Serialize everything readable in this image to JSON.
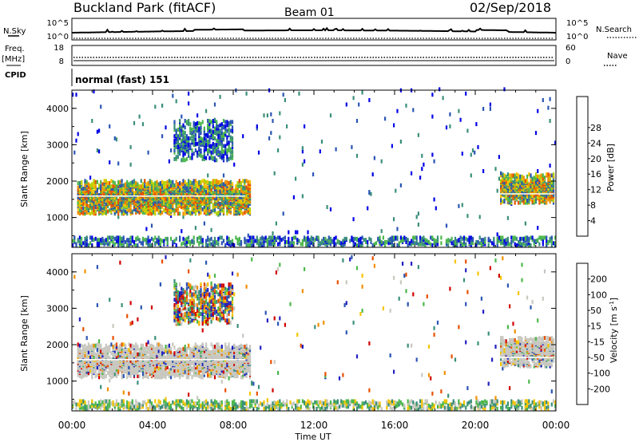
{
  "header": {
    "title": "Buckland Park (fitACF)",
    "beam": "Beam 01",
    "date": "02/Sep/2018"
  },
  "left_labels": {
    "nsky": "N.Sky",
    "freq": "Freq.",
    "freq_unit": "[MHz]",
    "cpid": "CPID"
  },
  "right_labels": {
    "nsearch": "N.Search",
    "nave": "Nave"
  },
  "cpid_text": "normal (fast) 151",
  "noise_panel": {
    "left_ticks": [
      "10^5",
      "10^0"
    ],
    "right_ticks": [
      "10^5",
      "10^0"
    ]
  },
  "freq_panel": {
    "left_ticks": [
      "18",
      "8"
    ],
    "right_ticks": [
      "60",
      "0"
    ]
  },
  "chart_data": [
    {
      "type": "heatmap",
      "panel": "power",
      "ylabel": "Slant Range [km]",
      "xlabel": "",
      "yticks": [
        "1000",
        "2000",
        "3000",
        "4000"
      ],
      "ylim": [
        180,
        4500
      ],
      "xlim_hours": [
        0,
        24
      ],
      "colorbar": {
        "label": "Power [dB]",
        "ticks": [
          "4",
          "8",
          "12",
          "16",
          "20",
          "24",
          "28"
        ],
        "colors": [
          "#0000e6",
          "#2a55b4",
          "#3a8f7a",
          "#4cb84c",
          "#b8d200",
          "#f5c400",
          "#f09000",
          "#e85000",
          "#d00000"
        ]
      },
      "regions": [
        {
          "t0": 0.2,
          "t1": 8.8,
          "r0": 1050,
          "r1": 1950,
          "level": "high"
        },
        {
          "t0": 5.0,
          "t1": 8.0,
          "r0": 2500,
          "r1": 3600,
          "level": "mid"
        },
        {
          "t0": 21.2,
          "t1": 23.9,
          "r0": 1350,
          "r1": 2150,
          "level": "high"
        },
        {
          "t0": 0,
          "t1": 24,
          "r0": 180,
          "r1": 400,
          "level": "low"
        }
      ]
    },
    {
      "type": "heatmap",
      "panel": "velocity",
      "ylabel": "Slant Range [km]",
      "xlabel": "Time UT",
      "yticks": [
        "1000",
        "2000",
        "3000",
        "4000"
      ],
      "xticks": [
        "00:00",
        "04:00",
        "08:00",
        "12:00",
        "16:00",
        "20:00",
        "00:00"
      ],
      "ylim": [
        180,
        4500
      ],
      "xlim_hours": [
        0,
        24
      ],
      "colorbar": {
        "label": "Velocity [m s",
        "label_sup": "-1",
        "label_end": "]",
        "ticks": [
          "200",
          "100",
          "50",
          "15",
          "-15",
          "-50",
          "-100",
          "-200"
        ],
        "colors": [
          "#2020c0",
          "#2a55b4",
          "#3a8f7a",
          "#4cb84c",
          "#c8c8c0",
          "#f5c400",
          "#f09000",
          "#e85000",
          "#d00000"
        ]
      }
    }
  ]
}
